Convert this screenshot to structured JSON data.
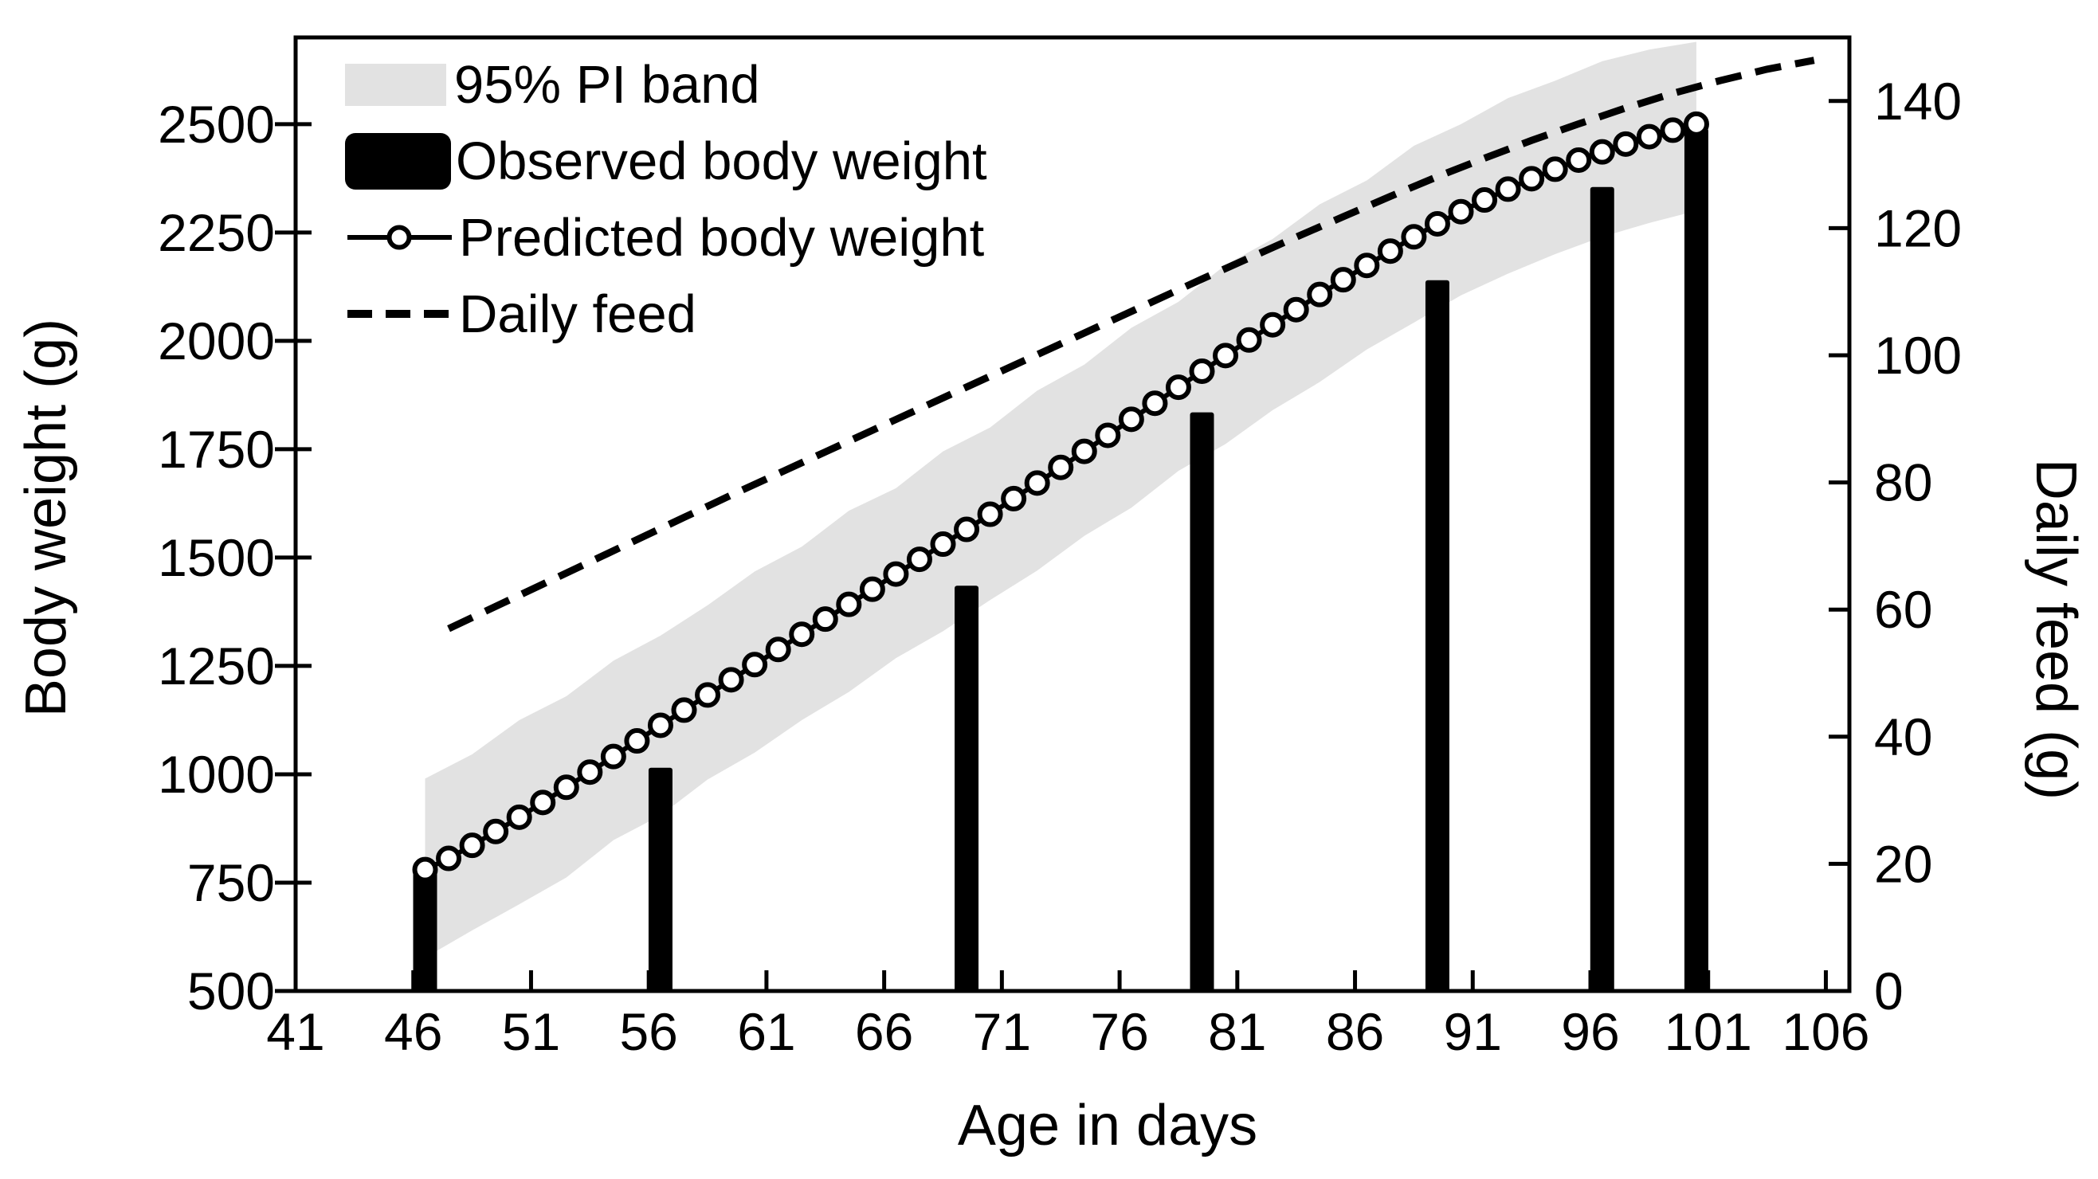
{
  "colors": {
    "ink": "#000000",
    "band": "#e2e2e2",
    "background": "#ffffff",
    "marker_fill": "#ffffff"
  },
  "chart_data": {
    "type": "combo",
    "subtypes": [
      "area-band",
      "bar",
      "line-markers",
      "dashed-line"
    ],
    "xlabel": "Age in days",
    "ylabel_left": "Body weight (g)",
    "ylabel_right": "Daily feed (g)",
    "x_range": [
      41,
      107
    ],
    "y_left_range": [
      500,
      2700
    ],
    "y_right_range": [
      0,
      150
    ],
    "x_ticks": [
      41,
      46,
      51,
      56,
      61,
      66,
      71,
      76,
      81,
      86,
      91,
      96,
      101,
      106
    ],
    "y_left_ticks": [
      500,
      750,
      1000,
      1250,
      1500,
      1750,
      2000,
      2250,
      2500
    ],
    "y_right_ticks": [
      0,
      20,
      40,
      60,
      80,
      100,
      120,
      140
    ],
    "x_offset": 0.5,
    "legend_position": "top-left-inside",
    "series": [
      {
        "name": "95% PI band",
        "type": "band",
        "axis": "left",
        "x": [
          46,
          48,
          50,
          52,
          54,
          56,
          58,
          60,
          62,
          64,
          66,
          68,
          70,
          72,
          74,
          76,
          78,
          80,
          82,
          84,
          86,
          88,
          90,
          92,
          94,
          96,
          98,
          100
        ],
        "upper": [
          990,
          1046,
          1125,
          1180,
          1262,
          1320,
          1390,
          1468,
          1525,
          1608,
          1660,
          1745,
          1800,
          1885,
          1945,
          2030,
          2090,
          2175,
          2235,
          2315,
          2370,
          2450,
          2500,
          2560,
          2600,
          2645,
          2672,
          2690
        ],
        "lower": [
          577,
          640,
          700,
          762,
          848,
          905,
          988,
          1050,
          1125,
          1190,
          1268,
          1330,
          1402,
          1470,
          1550,
          1615,
          1700,
          1762,
          1840,
          1905,
          1980,
          2042,
          2105,
          2155,
          2200,
          2240,
          2272,
          2300
        ]
      },
      {
        "name": "Observed body weight",
        "type": "bar",
        "axis": "left",
        "x": [
          46,
          56,
          69,
          79,
          89,
          96,
          100
        ],
        "values": [
          780,
          1015,
          1435,
          1835,
          2140,
          2355,
          2490
        ]
      },
      {
        "name": "Predicted body weight",
        "type": "line",
        "marker": "open-circle",
        "axis": "left",
        "x": [
          46,
          47,
          48,
          49,
          50,
          51,
          52,
          53,
          54,
          55,
          56,
          57,
          58,
          59,
          60,
          61,
          62,
          63,
          64,
          65,
          66,
          67,
          68,
          69,
          70,
          71,
          72,
          73,
          74,
          75,
          76,
          77,
          78,
          79,
          80,
          81,
          82,
          83,
          84,
          85,
          86,
          87,
          88,
          89,
          90,
          91,
          92,
          93,
          94,
          95,
          96,
          97,
          98,
          99,
          100
        ],
        "values": [
          780,
          806,
          836,
          868,
          901,
          935,
          970,
          1005,
          1041,
          1077,
          1113,
          1148,
          1183,
          1218,
          1253,
          1288,
          1323,
          1358,
          1392,
          1427,
          1462,
          1496,
          1531,
          1565,
          1600,
          1636,
          1672,
          1708,
          1745,
          1782,
          1819,
          1856,
          1893,
          1930,
          1966,
          2002,
          2037,
          2072,
          2107,
          2141,
          2174,
          2207,
          2240,
          2270,
          2298,
          2325,
          2350,
          2374,
          2396,
          2417,
          2436,
          2454,
          2471,
          2486,
          2500
        ]
      },
      {
        "name": "Daily feed",
        "type": "line",
        "style": "dashed",
        "axis": "right",
        "x": [
          47,
          49,
          51,
          53,
          55,
          57,
          59,
          61,
          63,
          65,
          67,
          69,
          71,
          73,
          75,
          77,
          79,
          81,
          83,
          85,
          87,
          89,
          91,
          93,
          95,
          97,
          99,
          101,
          103,
          105
        ],
        "values": [
          57,
          60.5,
          64,
          67.5,
          71,
          74.5,
          78,
          81.4,
          84.8,
          88.2,
          91.6,
          95,
          98.4,
          101.8,
          105.2,
          108.6,
          112,
          115.3,
          118.6,
          121.8,
          125,
          128.1,
          131,
          133.8,
          136.4,
          138.9,
          141.2,
          143.2,
          145,
          146.4
        ]
      }
    ]
  }
}
